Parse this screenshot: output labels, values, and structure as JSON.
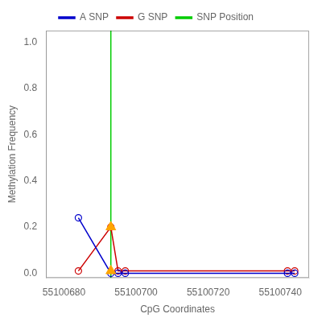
{
  "chart_data": {
    "type": "line",
    "xlabel": "CpG Coordinates",
    "ylabel": "Methylation Frequency",
    "series": [
      {
        "name": "A SNP",
        "color": "#0000cc",
        "marker": "circle",
        "x": [
          55100684,
          55100693,
          55100695,
          55100697,
          55100742,
          55100744
        ],
        "values": [
          0.24,
          0.0,
          0.0,
          0.0,
          0.0,
          0.0
        ]
      },
      {
        "name": "G SNP",
        "color": "#cc0000",
        "marker": "circle",
        "x": [
          55100684,
          55100693,
          55100695,
          55100697,
          55100742,
          55100744
        ],
        "values": [
          0.01,
          0.2,
          0.01,
          0.01,
          0.01,
          0.01
        ]
      },
      {
        "name": "SNP Position",
        "color": "#00cc00",
        "type": "vline",
        "x": 55100693
      }
    ],
    "points": [
      {
        "x": 55100693,
        "y": 0.2,
        "color": "#ffa500",
        "marker": "triangle"
      },
      {
        "x": 55100693,
        "y": 0.01,
        "color": "#ffa500",
        "marker": "triangle"
      }
    ],
    "xlim": [
      55100675,
      55100748
    ],
    "xticks": [
      55100680,
      55100700,
      55100720,
      55100740
    ],
    "ylim": [
      -0.02,
      1.05
    ],
    "yticks": [
      {
        "value": 0.0,
        "label": "0.0"
      },
      0.2,
      0.4,
      0.6,
      0.8,
      {
        "value": 1.0,
        "label": "1.0"
      }
    ],
    "grid": false,
    "legend": "top"
  }
}
